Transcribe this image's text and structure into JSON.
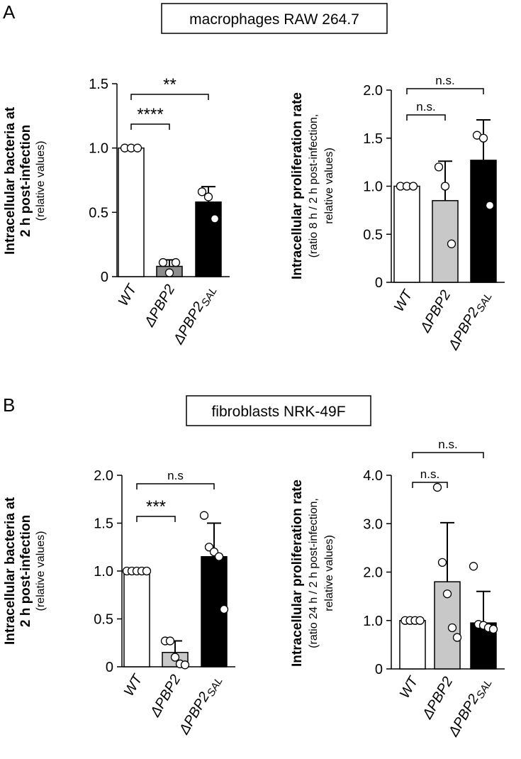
{
  "panels": [
    {
      "label": "A",
      "title": "macrophages RAW 264.7"
    },
    {
      "label": "B",
      "title": "fibroblasts NRK-49F"
    }
  ],
  "chart_data": [
    {
      "type": "bar",
      "ylabel": [
        "Intracellular bacteria at",
        "2 h post-infection"
      ],
      "ylabel_note": [
        "(relative values)"
      ],
      "categories": [
        "WT",
        "ΔPBP2",
        "ΔPBP2"
      ],
      "category_subscripts": [
        null,
        null,
        "SAL"
      ],
      "values": [
        1.0,
        0.08,
        0.58
      ],
      "errors": [
        0,
        0.05,
        0.12
      ],
      "colors": [
        "#ffffff",
        "#8c8c8c",
        "#000000"
      ],
      "points": [
        [
          1,
          1,
          1
        ],
        [
          0.11,
          0.03,
          0.11
        ],
        [
          0.66,
          0.62,
          0.45
        ]
      ],
      "ylim": [
        0,
        1.5
      ],
      "yticks": [
        0,
        0.5,
        {
          "value": 1,
          "label": "1.0"
        },
        1.5
      ],
      "significance": [
        {
          "from": 0,
          "to": 1,
          "label": "****"
        },
        {
          "from": 0,
          "to": 2,
          "label": "**"
        }
      ]
    },
    {
      "type": "bar",
      "ylabel": [
        "Intracellular proliferation rate"
      ],
      "ylabel_note": [
        "(ratio 8 h / 2 h post-infection,",
        "relative values)"
      ],
      "categories": [
        "WT",
        "ΔPBP2",
        "ΔPBP2"
      ],
      "category_subscripts": [
        null,
        null,
        "SAL"
      ],
      "values": [
        1.0,
        0.85,
        1.27
      ],
      "errors": [
        0,
        0.41,
        0.42
      ],
      "colors": [
        "#ffffff",
        "#c8c8c8",
        "#000000"
      ],
      "points": [
        [
          1,
          1,
          1
        ],
        [
          1.2,
          1.0,
          0.4
        ],
        [
          1.53,
          1.5,
          0.8
        ]
      ],
      "ylim": [
        0,
        2
      ],
      "yticks": [
        0,
        0.5,
        {
          "value": 1,
          "label": "1.0"
        },
        1.5,
        {
          "value": 2,
          "label": "2.0"
        }
      ],
      "significance": [
        {
          "from": 0,
          "to": 1,
          "label": "n.s."
        },
        {
          "from": 0,
          "to": 2,
          "label": "n.s."
        }
      ]
    },
    {
      "type": "bar",
      "ylabel": [
        "Intracellular bacteria at",
        "2 h post-infection"
      ],
      "ylabel_note": [
        "(relative values)"
      ],
      "categories": [
        "WT",
        "ΔPBP2",
        "ΔPBP2"
      ],
      "category_subscripts": [
        null,
        null,
        "SAL"
      ],
      "values": [
        1.0,
        0.15,
        1.15
      ],
      "errors": [
        0,
        0.12,
        0.35
      ],
      "colors": [
        "#ffffff",
        "#c8c8c8",
        "#000000"
      ],
      "points": [
        [
          1,
          1,
          1,
          1,
          1
        ],
        [
          0.27,
          0.27,
          0.1,
          0.03,
          0.02
        ],
        [
          1.58,
          1.25,
          1.2,
          1.15,
          0.6
        ]
      ],
      "ylim": [
        0,
        2
      ],
      "yticks": [
        0,
        0.5,
        {
          "value": 1,
          "label": "1.0"
        },
        1.5,
        {
          "value": 2,
          "label": "2.0"
        }
      ],
      "significance": [
        {
          "from": 0,
          "to": 1,
          "label": "***"
        },
        {
          "from": 0,
          "to": 2,
          "label": "n.s"
        }
      ]
    },
    {
      "type": "bar",
      "ylabel": [
        "Intracellular proliferation rate"
      ],
      "ylabel_note": [
        "(ratio 24 h / 2 h post-infection,",
        "relative values)"
      ],
      "categories": [
        "WT",
        "ΔPBP2",
        "ΔPBP2"
      ],
      "category_subscripts": [
        null,
        null,
        "SAL"
      ],
      "values": [
        1.0,
        1.8,
        0.95
      ],
      "errors": [
        0,
        1.22,
        0.65
      ],
      "colors": [
        "#ffffff",
        "#c8c8c8",
        "#000000"
      ],
      "points": [
        [
          1,
          1,
          1,
          1
        ],
        [
          3.75,
          2.2,
          1.55,
          0.85,
          0.65
        ],
        [
          2.12,
          0.92,
          0.9,
          0.85,
          0.82
        ]
      ],
      "ylim": [
        0,
        4
      ],
      "yticks": [
        0,
        {
          "value": 1,
          "label": "1.0"
        },
        {
          "value": 2,
          "label": "2.0"
        },
        {
          "value": 3,
          "label": "3.0"
        },
        {
          "value": 4,
          "label": "4.0"
        }
      ],
      "significance": [
        {
          "from": 0,
          "to": 1,
          "label": "n.s."
        },
        {
          "from": 0,
          "to": 2,
          "label": "n.s."
        }
      ]
    }
  ]
}
